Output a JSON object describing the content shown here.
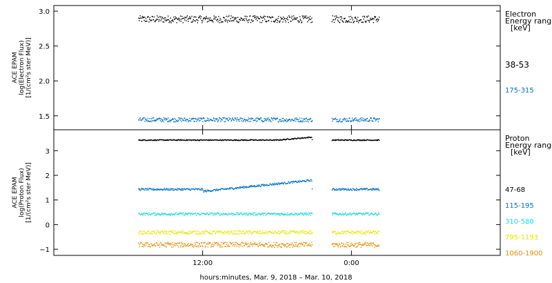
{
  "colors": {
    "black": "#000000",
    "blue": "#0070c0",
    "cyan": "#22d8d8",
    "yellow": "#e6e600",
    "orange": "#e88a00"
  },
  "chart_data": [
    {
      "type": "scatter",
      "panel": "electron",
      "ylabel_lines": [
        "ACE EPAM",
        "log(Electron Flux)",
        "[1/(cm²s ster MeV)]"
      ],
      "ylim": [
        1.3,
        3.08
      ],
      "yticks": [
        1.5,
        2.0,
        2.5,
        3.0
      ],
      "ytick_labels": [
        "1.5",
        "2.0",
        "2.5",
        "3.0"
      ],
      "legend_title": [
        "Electron",
        "Energy ranges",
        "[keV]"
      ],
      "series": [
        {
          "name": "38-53",
          "color": "#000000",
          "base": 2.89,
          "noise": 0.05
        },
        {
          "name": "175-315",
          "color": "#0070c0",
          "base": 1.45,
          "noise": 0.03
        }
      ]
    },
    {
      "type": "scatter",
      "panel": "proton",
      "ylabel_lines": [
        "ACE EPAM",
        "log(Proton Flux)",
        "[1/(cm²s ster MeV)]"
      ],
      "ylim": [
        -1.25,
        3.85
      ],
      "yticks": [
        -1,
        0,
        1,
        2,
        3
      ],
      "ytick_labels": [
        "−1",
        "0",
        "1",
        "2",
        "3"
      ],
      "legend_title": [
        "Proton",
        "Energy ranges",
        "[keV]"
      ],
      "series": [
        {
          "name": "47-68",
          "color": "#000000",
          "base": 3.45,
          "noise": 0.02
        },
        {
          "name": "115-195",
          "color": "#0070c0",
          "base": 1.45,
          "noise": 0.04
        },
        {
          "name": "310-580",
          "color": "#22d8d8",
          "base": 0.45,
          "noise": 0.05
        },
        {
          "name": "795-1193",
          "color": "#e6e600",
          "base": -0.3,
          "noise": 0.07
        },
        {
          "name": "1060-1900",
          "color": "#e88a00",
          "base": -0.8,
          "noise": 0.1
        }
      ]
    }
  ],
  "x_axis": {
    "title": "hours:minutes, Mar.  9, 2018 – Mar. 10, 2018",
    "range_hours": [
      0,
      36
    ],
    "tick_hours": [
      12,
      24
    ],
    "tick_labels": [
      "12:00",
      "0:00"
    ],
    "data_segments_hours": [
      [
        6.8,
        20.8
      ],
      [
        22.4,
        26.2
      ]
    ]
  }
}
